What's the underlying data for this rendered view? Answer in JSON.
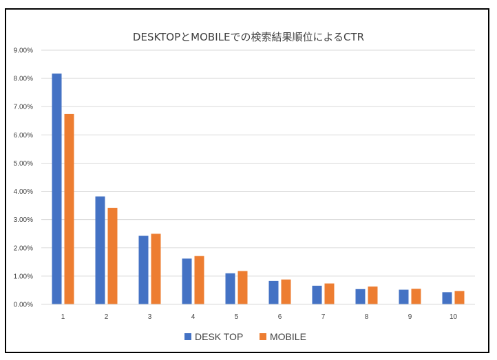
{
  "chart_data": {
    "type": "bar",
    "title": "DESKTOPとMOBILEでの検索結果順位によるCTR",
    "xlabel": "",
    "ylabel": "",
    "categories": [
      "1",
      "2",
      "3",
      "4",
      "5",
      "6",
      "7",
      "8",
      "9",
      "10"
    ],
    "series": [
      {
        "name": "DESK TOP",
        "color": "#4472C4",
        "values": [
          8.17,
          3.82,
          2.43,
          1.62,
          1.1,
          0.83,
          0.66,
          0.54,
          0.52,
          0.43
        ]
      },
      {
        "name": "MOBILE",
        "color": "#ED7D31",
        "values": [
          6.74,
          3.41,
          2.5,
          1.71,
          1.18,
          0.88,
          0.74,
          0.63,
          0.55,
          0.47
        ]
      }
    ],
    "ylim": [
      0,
      9
    ],
    "yticks": [
      "0.00%",
      "1.00%",
      "2.00%",
      "3.00%",
      "4.00%",
      "5.00%",
      "6.00%",
      "7.00%",
      "8.00%",
      "9.00%"
    ],
    "grid": true,
    "legend_position": "bottom"
  }
}
